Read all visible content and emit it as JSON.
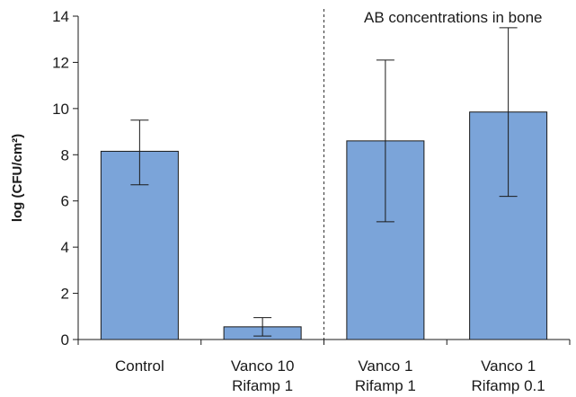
{
  "chart_data": {
    "type": "bar",
    "categories": [
      [
        "Control"
      ],
      [
        "Vanco 10",
        "Rifamp 1"
      ],
      [
        "Vanco 1",
        "Rifamp 1"
      ],
      [
        "Vanco 1",
        "Rifamp 0.1"
      ]
    ],
    "values": [
      8.15,
      0.55,
      8.6,
      9.85
    ],
    "error_low": [
      6.7,
      0.15,
      5.1,
      6.2
    ],
    "error_high": [
      9.5,
      0.95,
      12.1,
      13.5
    ],
    "ylabel": "log (CFU/cm²)",
    "ylim": [
      0,
      14
    ],
    "yticks": [
      0,
      2,
      4,
      6,
      8,
      10,
      12,
      14
    ],
    "grid": false,
    "bar_color": "#7ba4d9",
    "bar_edge_color": "#1a1a1a",
    "annotation": "AB concentrations in bone",
    "divider": "dashed line between categories 2 and 3"
  }
}
